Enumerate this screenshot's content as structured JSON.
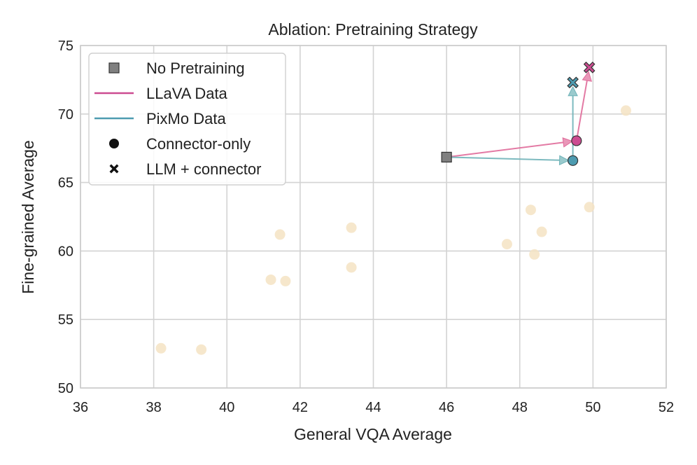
{
  "chart_data": {
    "type": "scatter",
    "title": "Ablation: Pretraining Strategy",
    "xlabel": "General VQA Average",
    "ylabel": "Fine-grained Average",
    "xlim": [
      36,
      52
    ],
    "ylim": [
      50,
      75
    ],
    "xticks": [
      36,
      38,
      40,
      42,
      44,
      46,
      48,
      50,
      52
    ],
    "yticks": [
      50,
      55,
      60,
      65,
      70,
      75
    ],
    "grid": true,
    "legend_position": "top-left",
    "colors": {
      "background_points": "#f5e3c3",
      "no_pretraining": "#808080",
      "llava": "#cc4c91",
      "pixmo": "#4d9bb0",
      "pixmo_arrow": "#6fb3b8",
      "llava_arrow": "#e06b9a",
      "marker_edge": "#333333"
    },
    "background_points": [
      {
        "x": 38.2,
        "y": 52.9
      },
      {
        "x": 39.3,
        "y": 52.8
      },
      {
        "x": 41.2,
        "y": 57.9
      },
      {
        "x": 41.6,
        "y": 57.8
      },
      {
        "x": 41.45,
        "y": 61.2
      },
      {
        "x": 43.4,
        "y": 61.7
      },
      {
        "x": 43.4,
        "y": 58.8
      },
      {
        "x": 47.65,
        "y": 60.5
      },
      {
        "x": 48.3,
        "y": 63.0
      },
      {
        "x": 48.4,
        "y": 59.75
      },
      {
        "x": 48.6,
        "y": 61.4
      },
      {
        "x": 49.9,
        "y": 63.2
      },
      {
        "x": 50.9,
        "y": 70.25
      }
    ],
    "highlight_points": [
      {
        "name": "no-pretraining",
        "series": "none",
        "marker": "square",
        "x": 46.0,
        "y": 66.85
      },
      {
        "name": "llava-connector-only",
        "series": "llava",
        "marker": "circle",
        "x": 49.55,
        "y": 68.05
      },
      {
        "name": "pixmo-connector-only",
        "series": "pixmo",
        "marker": "circle",
        "x": 49.45,
        "y": 66.6
      },
      {
        "name": "llava-llm-connector",
        "series": "llava",
        "marker": "x",
        "x": 49.9,
        "y": 73.4
      },
      {
        "name": "pixmo-llm-connector",
        "series": "pixmo",
        "marker": "x",
        "x": 49.45,
        "y": 72.3
      }
    ],
    "arrows": [
      {
        "name": "llava-arrow-1",
        "series": "llava",
        "from": [
          46.0,
          66.85
        ],
        "to": [
          49.55,
          68.05
        ]
      },
      {
        "name": "pixmo-arrow-1",
        "series": "pixmo",
        "from": [
          46.0,
          66.85
        ],
        "to": [
          49.45,
          66.6
        ]
      },
      {
        "name": "llava-arrow-2",
        "series": "llava",
        "from": [
          49.55,
          68.05
        ],
        "to": [
          49.9,
          73.4
        ]
      },
      {
        "name": "pixmo-arrow-2",
        "series": "pixmo",
        "from": [
          49.45,
          66.6
        ],
        "to": [
          49.45,
          72.3
        ]
      }
    ],
    "legend": [
      {
        "label": "No Pretraining",
        "symbol": "square"
      },
      {
        "label": "LLaVA Data",
        "symbol": "line-llava"
      },
      {
        "label": "PixMo Data",
        "symbol": "line-pixmo"
      },
      {
        "label": "Connector-only",
        "symbol": "circle"
      },
      {
        "label": "LLM + connector",
        "symbol": "x"
      }
    ]
  }
}
